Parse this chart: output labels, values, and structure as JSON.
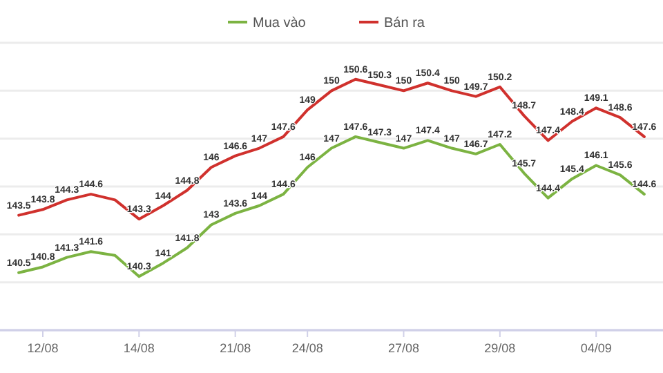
{
  "chart_data": {
    "type": "line",
    "categories": [
      null,
      "12/08",
      null,
      null,
      null,
      "14/08",
      null,
      null,
      null,
      "21/08",
      null,
      null,
      "24/08",
      null,
      null,
      null,
      "27/08",
      null,
      null,
      null,
      "29/08",
      null,
      null,
      null,
      "04/09",
      null,
      null
    ],
    "series": [
      {
        "name": "Mua vào",
        "color": "#7cb342",
        "values": [
          140.5,
          140.8,
          141.3,
          141.6,
          141.4,
          140.3,
          141,
          141.8,
          143,
          143.6,
          144,
          144.6,
          146,
          147,
          147.6,
          147.3,
          147,
          147.4,
          147,
          146.7,
          147.2,
          145.7,
          144.4,
          145.4,
          146.1,
          145.6,
          144.6
        ],
        "value_labels": [
          "140.5",
          "140.8",
          "141.3",
          "141.6",
          null,
          "140.3",
          "141",
          "141.8",
          "143",
          "143.6",
          "144",
          "144.6",
          "146",
          "147",
          "147.6",
          "147.3",
          "147",
          "147.4",
          "147",
          "146.7",
          "147.2",
          "145.7",
          "144.4",
          "145.4",
          "146.1",
          "145.6",
          "144.6"
        ]
      },
      {
        "name": "Bán ra",
        "color": "#d0312d",
        "values": [
          143.5,
          143.8,
          144.3,
          144.6,
          144.3,
          143.3,
          144,
          144.8,
          146,
          146.6,
          147,
          147.6,
          149,
          150,
          150.6,
          150.3,
          150,
          150.4,
          150,
          149.7,
          150.2,
          148.7,
          147.4,
          148.4,
          149.1,
          148.6,
          147.6
        ],
        "value_labels": [
          "143.5",
          "143.8",
          "144.3",
          "144.6",
          null,
          "143.3",
          "144",
          "144.8",
          "146",
          "146.6",
          "147",
          "147.6",
          "149",
          "150",
          "150.6",
          "150.3",
          "150",
          "150.4",
          "150",
          "149.7",
          "150.2",
          "148.7",
          "147.4",
          "148.4",
          "149.1",
          "148.6",
          "147.6"
        ]
      }
    ],
    "ylim": [
      137.5,
      152.5
    ],
    "yticks": [
      {
        "value": 137.5,
        "label": null
      },
      {
        "value": 140,
        "label": null
      },
      {
        "value": 142.5,
        "label": null
      },
      {
        "value": 145,
        "label": null
      },
      {
        "value": 147.5,
        "label": null
      },
      {
        "value": 150,
        "label": null
      },
      {
        "value": 152.5,
        "label": null
      }
    ],
    "tick_labels": "x",
    "grid": "y",
    "legend": "top",
    "marker": "none",
    "line_style": "solid"
  }
}
